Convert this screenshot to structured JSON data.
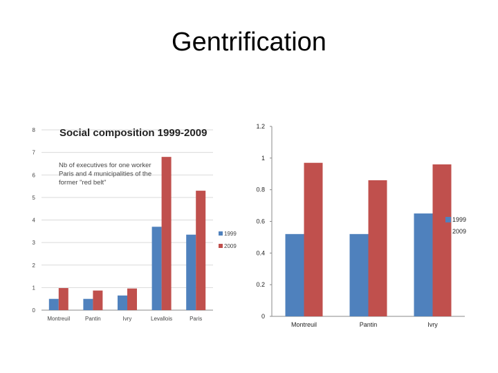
{
  "slide": {
    "title": "Gentrification"
  },
  "colors": {
    "s1999": "#4F81BD",
    "s2009": "#C0504D",
    "grid": "#d9d9d9",
    "axis": "#888888"
  },
  "chart_data": [
    {
      "type": "bar",
      "title": "Social composition 1999-2009",
      "annotation": [
        "Nb of executives for one worker",
        "Paris and 4 municipalities of the",
        "former \"red belt\""
      ],
      "categories": [
        "Montreuil",
        "Pantin",
        "Ivry",
        "Levallois",
        "Paris"
      ],
      "series": [
        {
          "name": "1999",
          "values": [
            0.5,
            0.5,
            0.65,
            3.7,
            3.35
          ]
        },
        {
          "name": "2009",
          "values": [
            0.98,
            0.87,
            0.96,
            6.8,
            5.3
          ]
        }
      ],
      "yticks": [
        "0",
        "1",
        "2",
        "3",
        "4",
        "5",
        "6",
        "7",
        "8"
      ],
      "ylim": [
        0,
        8
      ],
      "grid": true,
      "legend": "right"
    },
    {
      "type": "bar",
      "categories": [
        "Montreuil",
        "Pantin",
        "Ivry"
      ],
      "series": [
        {
          "name": "1999",
          "values": [
            0.52,
            0.52,
            0.65
          ]
        },
        {
          "name": "2009",
          "values": [
            0.97,
            0.86,
            0.96
          ]
        }
      ],
      "yticks": [
        "0",
        "0.2",
        "0.4",
        "0.6",
        "0.8",
        "1",
        "1.2"
      ],
      "ylim": [
        0,
        1.2
      ],
      "grid": false,
      "legend": "right"
    }
  ]
}
